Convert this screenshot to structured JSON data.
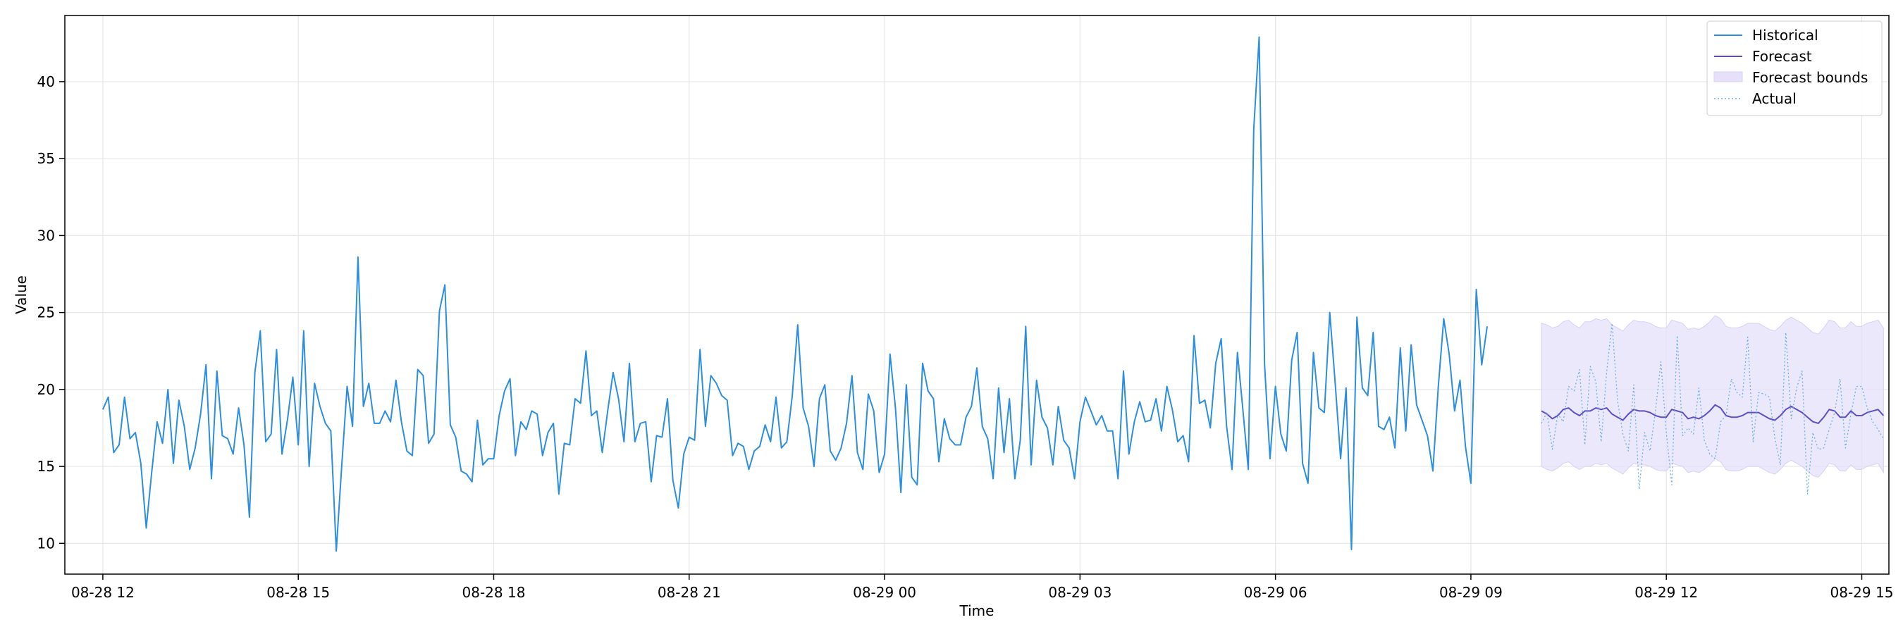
{
  "chart_data": {
    "type": "line",
    "title": "",
    "xlabel": "Time",
    "ylabel": "Value",
    "grid": true,
    "legend_position": "top-right",
    "x_start": "08-28 12:00",
    "x_step_minutes": 5,
    "xlim": [
      "08-28 11:25",
      "08-29 15:25"
    ],
    "ylim": [
      8.0,
      44.3
    ],
    "x_ticks": [
      {
        "label": "08-28 12",
        "value": "08-28 12:00"
      },
      {
        "label": "08-28 15",
        "value": "08-28 15:00"
      },
      {
        "label": "08-28 18",
        "value": "08-28 18:00"
      },
      {
        "label": "08-28 21",
        "value": "08-28 21:00"
      },
      {
        "label": "08-29 00",
        "value": "08-29 00:00"
      },
      {
        "label": "08-29 03",
        "value": "08-29 03:00"
      },
      {
        "label": "08-29 06",
        "value": "08-29 06:00"
      },
      {
        "label": "08-29 09",
        "value": "08-29 09:00"
      },
      {
        "label": "08-29 12",
        "value": "08-29 12:00"
      },
      {
        "label": "08-29 15",
        "value": "08-29 15:00"
      }
    ],
    "y_ticks": [
      10,
      15,
      20,
      25,
      30,
      35,
      40
    ],
    "colors": {
      "historical": "#2b8ee0",
      "forecast": "#5b4fc9",
      "bounds_fill": "#e6e0fa",
      "bounds_edge": "#d8cff5",
      "actual": "#6aaee8",
      "grid": "#e6e6e6",
      "axis": "#000000"
    },
    "series": [
      {
        "name": "Historical",
        "style": "solid",
        "start_index": 0,
        "values": [
          18.7,
          19.5,
          15.9,
          16.4,
          19.5,
          16.8,
          17.2,
          15.2,
          11.0,
          14.6,
          17.9,
          16.5,
          20.0,
          15.2,
          19.3,
          17.6,
          14.8,
          16.2,
          18.4,
          21.6,
          14.2,
          21.2,
          17.0,
          16.8,
          15.8,
          18.8,
          16.4,
          11.7,
          21.1,
          23.8,
          16.6,
          17.1,
          22.6,
          15.8,
          18.0,
          20.8,
          16.4,
          23.8,
          15.0,
          20.4,
          18.9,
          17.8,
          17.3,
          9.5,
          15.0,
          20.2,
          17.6,
          28.6,
          18.9,
          20.4,
          17.8,
          17.8,
          18.6,
          17.9,
          20.6,
          17.9,
          16.0,
          15.7,
          21.3,
          20.9,
          16.5,
          17.1,
          25.1,
          26.8,
          17.7,
          16.9,
          14.7,
          14.5,
          14.0,
          18.0,
          15.1,
          15.5,
          15.5,
          18.3,
          19.9,
          20.7,
          15.7,
          17.9,
          17.4,
          18.6,
          18.4,
          15.7,
          17.2,
          17.8,
          13.2,
          16.5,
          16.4,
          19.4,
          19.1,
          22.5,
          18.3,
          18.6,
          15.9,
          18.6,
          21.1,
          19.4,
          16.6,
          21.7,
          16.6,
          17.8,
          17.9,
          14.0,
          17.0,
          16.9,
          19.4,
          14.1,
          12.3,
          15.8,
          16.9,
          16.7,
          22.6,
          17.6,
          20.9,
          20.4,
          19.6,
          19.3,
          15.7,
          16.5,
          16.3,
          14.8,
          16.0,
          16.3,
          17.7,
          16.6,
          19.5,
          16.2,
          16.6,
          19.6,
          24.2,
          18.8,
          17.6,
          15.0,
          19.4,
          20.3,
          16.0,
          15.4,
          16.2,
          17.8,
          20.9,
          15.9,
          14.8,
          19.7,
          18.6,
          14.6,
          15.8,
          22.3,
          18.8,
          13.3,
          20.3,
          14.3,
          13.8,
          21.7,
          19.9,
          19.4,
          15.3,
          18.1,
          16.8,
          16.4,
          16.4,
          18.2,
          18.9,
          21.4,
          17.6,
          16.8,
          14.2,
          20.1,
          15.9,
          19.4,
          14.2,
          16.7,
          24.1,
          15.1,
          20.6,
          18.2,
          17.5,
          15.1,
          18.9,
          16.7,
          16.2,
          14.2,
          17.9,
          19.5,
          18.6,
          17.7,
          18.3,
          17.3,
          17.3,
          14.2,
          21.2,
          15.8,
          17.9,
          19.2,
          17.9,
          18.0,
          19.4,
          17.3,
          20.2,
          18.7,
          16.6,
          17.0,
          15.3,
          23.5,
          19.1,
          19.3,
          17.5,
          21.7,
          23.3,
          17.6,
          14.8,
          22.4,
          18.7,
          14.8,
          36.9,
          42.9,
          21.6,
          15.5,
          20.2,
          17.1,
          16.0,
          21.9,
          23.7,
          15.2,
          13.9,
          22.4,
          18.8,
          18.5,
          25.0,
          20.4,
          15.5,
          20.1,
          9.6,
          24.7,
          20.1,
          19.6,
          23.7,
          17.6,
          17.4,
          18.2,
          16.2,
          22.7,
          17.3,
          22.9,
          19.0,
          18.0,
          17.0,
          14.7,
          20.2,
          24.6,
          22.3,
          18.6,
          20.6,
          16.3,
          13.9,
          26.5,
          21.6,
          24.1
        ]
      },
      {
        "name": "Forecast",
        "style": "solid",
        "start_index": 265,
        "values": [
          18.6,
          18.4,
          18.1,
          18.3,
          18.7,
          18.8,
          18.5,
          18.3,
          18.6,
          18.6,
          18.8,
          18.7,
          18.8,
          18.4,
          18.2,
          18.0,
          18.4,
          18.7,
          18.6,
          18.6,
          18.5,
          18.3,
          18.2,
          18.2,
          18.7,
          18.6,
          18.5,
          18.1,
          18.2,
          18.1,
          18.3,
          18.6,
          19.0,
          18.8,
          18.3,
          18.2,
          18.2,
          18.3,
          18.5,
          18.5,
          18.5,
          18.3,
          18.1,
          18.0,
          18.3,
          18.7,
          18.9,
          18.7,
          18.5,
          18.2,
          17.9,
          17.8,
          18.2,
          18.7,
          18.6,
          18.2,
          18.2,
          18.6,
          18.3,
          18.3,
          18.5,
          18.6,
          18.7,
          18.3
        ]
      },
      {
        "name": "Forecast bounds",
        "style": "band",
        "start_index": 265,
        "upper": [
          24.3,
          24.2,
          24.0,
          24.1,
          24.4,
          24.5,
          24.2,
          24.0,
          24.4,
          24.4,
          24.6,
          24.5,
          24.6,
          24.2,
          24.0,
          23.8,
          24.2,
          24.5,
          24.4,
          24.4,
          24.3,
          24.1,
          24.0,
          24.0,
          24.5,
          24.4,
          24.3,
          23.9,
          24.0,
          23.9,
          24.1,
          24.4,
          24.8,
          24.6,
          24.1,
          24.0,
          24.0,
          24.1,
          24.3,
          24.3,
          24.3,
          24.1,
          23.9,
          23.8,
          24.1,
          24.5,
          24.7,
          24.5,
          24.3,
          24.0,
          23.7,
          23.6,
          24.0,
          24.5,
          24.4,
          24.0,
          24.0,
          24.4,
          24.1,
          24.1,
          24.3,
          24.4,
          24.5,
          24.0
        ],
        "lower": [
          15.0,
          14.8,
          14.7,
          14.9,
          15.2,
          15.3,
          15.0,
          14.8,
          15.0,
          15.0,
          15.2,
          15.1,
          15.2,
          14.9,
          14.7,
          14.5,
          14.9,
          15.2,
          15.1,
          15.1,
          15.0,
          14.8,
          14.7,
          14.7,
          15.2,
          15.1,
          15.0,
          14.6,
          14.7,
          14.6,
          14.8,
          15.1,
          15.5,
          15.3,
          14.8,
          14.7,
          14.7,
          14.8,
          15.0,
          15.0,
          15.0,
          14.8,
          14.6,
          14.5,
          14.8,
          15.2,
          15.4,
          15.2,
          15.0,
          14.7,
          14.4,
          14.3,
          14.7,
          15.2,
          15.1,
          14.7,
          14.7,
          15.1,
          14.8,
          14.8,
          15.0,
          15.1,
          15.2,
          14.6
        ]
      },
      {
        "name": "Actual",
        "style": "dotted",
        "start_index": 265,
        "values": [
          17.8,
          18.5,
          16.1,
          18.4,
          17.9,
          20.2,
          19.9,
          21.3,
          16.4,
          21.5,
          20.5,
          16.6,
          21.1,
          24.3,
          19.3,
          17.1,
          16.0,
          20.3,
          13.5,
          17.2,
          16.0,
          18.6,
          21.8,
          17.2,
          13.8,
          23.5,
          17.0,
          17.5,
          17.1,
          20.1,
          16.7,
          15.8,
          15.5,
          17.9,
          18.3,
          20.7,
          19.8,
          19.5,
          23.4,
          16.6,
          19.8,
          19.7,
          19.5,
          16.8,
          15.1,
          23.7,
          18.1,
          20.1,
          21.2,
          13.2,
          17.2,
          16.1,
          16.2,
          17.4,
          18.5,
          20.7,
          16.2,
          18.4,
          20.2,
          20.2,
          18.8,
          17.9,
          17.4,
          16.8
        ]
      }
    ],
    "legend": [
      {
        "label": "Historical",
        "style": "line"
      },
      {
        "label": "Forecast",
        "style": "line"
      },
      {
        "label": "Forecast bounds",
        "style": "band"
      },
      {
        "label": "Actual",
        "style": "dotted"
      }
    ]
  }
}
